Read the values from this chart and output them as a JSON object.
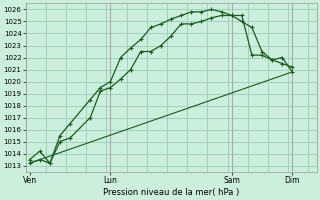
{
  "xlabel": "Pression niveau de la mer( hPa )",
  "bg_color": "#cceedd",
  "grid_color": "#99ccbb",
  "line_color": "#1a5c1a",
  "ylim_min": 1012.5,
  "ylim_max": 1026.5,
  "yticks": [
    1013,
    1014,
    1015,
    1016,
    1017,
    1018,
    1019,
    1020,
    1021,
    1022,
    1023,
    1024,
    1025,
    1026
  ],
  "xtick_labels": [
    "Ven",
    "Lun",
    "Sam",
    "Dim"
  ],
  "xtick_positions": [
    0,
    4,
    10,
    13
  ],
  "xlim_min": -0.2,
  "xlim_max": 14.2,
  "line1_x": [
    0,
    0.5,
    1,
    1.5,
    2,
    3,
    3.5,
    4,
    4.5,
    5,
    5.5,
    6,
    6.5,
    7,
    7.5,
    8,
    8.5,
    9,
    9.5,
    10,
    10.5,
    11,
    11.5,
    12,
    12.5,
    13
  ],
  "line1_y": [
    1013.5,
    1014.2,
    1013.2,
    1015.0,
    1015.3,
    1017.0,
    1019.2,
    1019.5,
    1020.2,
    1021.0,
    1022.5,
    1022.5,
    1023.0,
    1023.8,
    1024.8,
    1024.8,
    1025.0,
    1025.3,
    1025.5,
    1025.5,
    1025.5,
    1022.2,
    1022.2,
    1021.8,
    1022.0,
    1020.8
  ],
  "line2_x": [
    0,
    0.5,
    1,
    1.5,
    2,
    3,
    3.5,
    4,
    4.5,
    5,
    5.5,
    6,
    6.5,
    7,
    7.5,
    8,
    8.5,
    9,
    9.5,
    10,
    10.5,
    11,
    11.5,
    12,
    12.5,
    13
  ],
  "line2_y": [
    1013.2,
    1013.5,
    1013.2,
    1015.5,
    1016.5,
    1018.5,
    1019.5,
    1020.0,
    1022.0,
    1022.8,
    1023.5,
    1024.5,
    1024.8,
    1025.2,
    1025.5,
    1025.8,
    1025.8,
    1026.0,
    1025.8,
    1025.5,
    1025.0,
    1024.5,
    1022.5,
    1021.8,
    1021.5,
    1021.2
  ],
  "line3_x": [
    0,
    13
  ],
  "line3_y": [
    1013.2,
    1020.8
  ],
  "vline_positions": [
    4,
    10,
    13
  ],
  "day_separator_color": "#aaaaaa"
}
